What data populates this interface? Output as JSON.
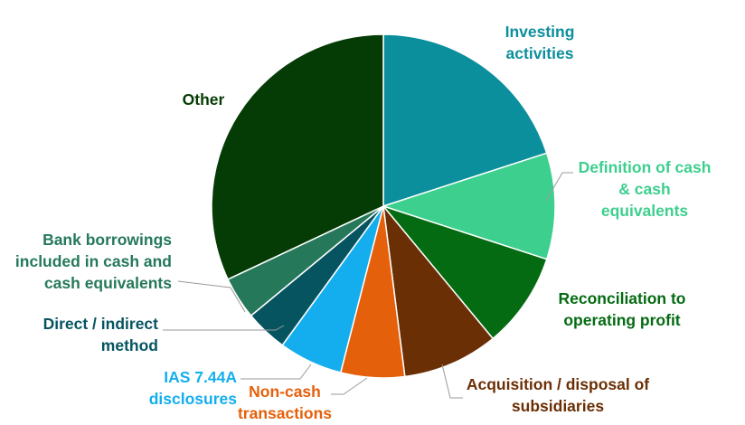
{
  "chart_data": {
    "type": "pie",
    "title": "",
    "slices": [
      {
        "label": [
          "Investing",
          "activities"
        ],
        "value": 20,
        "color": "#0b8f9c"
      },
      {
        "label": [
          "Definition of cash",
          "& cash",
          "equivalents"
        ],
        "value": 10,
        "color": "#3dcf8e"
      },
      {
        "label": [
          "Reconciliation to",
          "operating profit"
        ],
        "value": 9,
        "color": "#046b12"
      },
      {
        "label": [
          "Acquisition / disposal of",
          "subsidiaries"
        ],
        "value": 9,
        "color": "#6b2f05"
      },
      {
        "label": [
          "Non-cash",
          "transactions"
        ],
        "value": 6,
        "color": "#e5600b"
      },
      {
        "label": [
          "IAS 7.44A",
          "disclosures"
        ],
        "value": 6,
        "color": "#14aeee"
      },
      {
        "label": [
          "Direct / indirect",
          "method"
        ],
        "value": 4,
        "color": "#075461"
      },
      {
        "label": [
          "Bank borrowings",
          "included in cash and",
          "cash equivalents"
        ],
        "value": 4,
        "color": "#25795a"
      },
      {
        "label": [
          "Other"
        ],
        "value": 32,
        "color": "#053b05"
      }
    ],
    "legend": "none"
  }
}
